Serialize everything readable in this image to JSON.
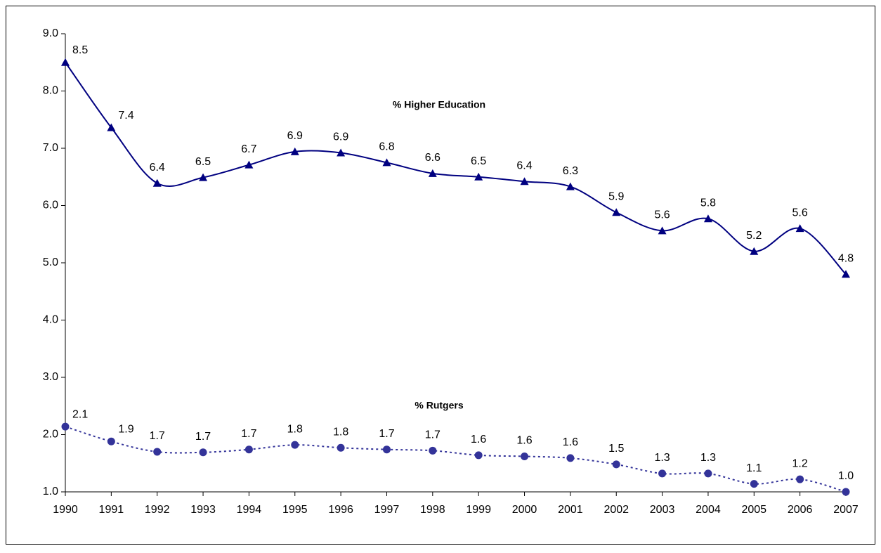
{
  "chart_data": {
    "type": "line",
    "categories": [
      "1990",
      "1991",
      "1992",
      "1993",
      "1994",
      "1995",
      "1996",
      "1997",
      "1998",
      "1999",
      "2000",
      "2001",
      "2002",
      "2003",
      "2004",
      "2005",
      "2006",
      "2007"
    ],
    "series": [
      {
        "name": "% Higher Education",
        "color": "#000080",
        "marker": "triangle",
        "dash": "solid",
        "values": [
          8.5,
          7.36,
          6.39,
          6.49,
          6.71,
          6.94,
          6.92,
          6.75,
          6.56,
          6.5,
          6.42,
          6.33,
          5.88,
          5.56,
          5.77,
          5.2,
          5.6,
          4.8
        ],
        "value_labels": [
          "8.5",
          "7.4",
          "6.4",
          "6.5",
          "6.7",
          "6.9",
          "6.9",
          "6.8",
          "6.6",
          "6.5",
          "6.4",
          "6.3",
          "5.9",
          "5.6",
          "5.8",
          "5.2",
          "5.6",
          "4.8"
        ]
      },
      {
        "name": "% Rutgers",
        "color": "#333399",
        "marker": "circle",
        "dash": "dotted",
        "values": [
          2.14,
          1.88,
          1.7,
          1.69,
          1.74,
          1.82,
          1.77,
          1.74,
          1.72,
          1.64,
          1.62,
          1.59,
          1.48,
          1.32,
          1.32,
          1.14,
          1.22,
          1
        ],
        "value_labels": [
          "2.1",
          "1.9",
          "1.7",
          "1.7",
          "1.7",
          "1.8",
          "1.8",
          "1.7",
          "1.7",
          "1.6",
          "1.6",
          "1.6",
          "1.5",
          "1.3",
          "1.3",
          "1.1",
          "1.2",
          "1.0"
        ]
      }
    ],
    "ylim": [
      1,
      9
    ],
    "yticks": [
      {
        "value": 1,
        "label": "1.0"
      },
      {
        "value": 2,
        "label": "2.0"
      },
      {
        "value": 3,
        "label": "3.0"
      },
      {
        "value": 4,
        "label": "4.0"
      },
      {
        "value": 5,
        "label": "5.0"
      },
      {
        "value": 6,
        "label": "6.0"
      },
      {
        "value": 7,
        "label": "7.0"
      },
      {
        "value": 8,
        "label": "8.0"
      },
      {
        "value": 9,
        "label": "9.0"
      }
    ],
    "grid": false
  }
}
